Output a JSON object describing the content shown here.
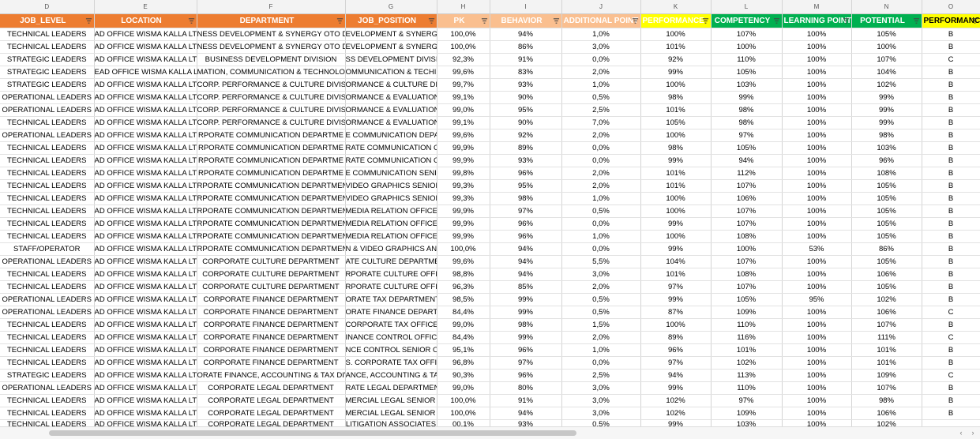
{
  "columns": [
    {
      "letter": "D",
      "header": "JOB_LEVEL",
      "color": "orange"
    },
    {
      "letter": "E",
      "header": "LOCATION",
      "color": "orange"
    },
    {
      "letter": "F",
      "header": "DEPARTMENT",
      "color": "orange"
    },
    {
      "letter": "G",
      "header": "JOB_POSITION",
      "color": "orange"
    },
    {
      "letter": "H",
      "header": "PK",
      "color": "peach"
    },
    {
      "letter": "I",
      "header": "BEHAVIOR",
      "color": "peach"
    },
    {
      "letter": "J",
      "header": "ADDITIONAL POINT",
      "color": "peach"
    },
    {
      "letter": "K",
      "header": "PERFORMANCE",
      "color": "yellow"
    },
    {
      "letter": "L",
      "header": "COMPETENCY",
      "color": "green"
    },
    {
      "letter": "M",
      "header": "LEARNING POINT",
      "color": "green"
    },
    {
      "letter": "N",
      "header": "POTENTIAL",
      "color": "green"
    },
    {
      "letter": "O",
      "header": "PERFORMANCE",
      "color": "yellow2"
    }
  ],
  "colors": {
    "orange": "#ED7D31",
    "peach": "#FABF8F",
    "yellow": "#FFFF00",
    "green": "#00B050"
  },
  "rows": [
    [
      "TECHNICAL LEADERS",
      "AD OFFICE WISMA KALLA LT.",
      "NESS DEVELOPMENT & SYNERGY OTO DIV",
      "EVELOPMENT & SYNERGY",
      "100,0%",
      "94%",
      "1,0%",
      "100%",
      "107%",
      "100%",
      "105%",
      "B"
    ],
    [
      "TECHNICAL LEADERS",
      "AD OFFICE WISMA KALLA LT.",
      "NESS DEVELOPMENT & SYNERGY OTO DIV",
      "EVELOPMENT & SYNERGY",
      "100,0%",
      "86%",
      "3,0%",
      "101%",
      "100%",
      "100%",
      "100%",
      "B"
    ],
    [
      "STRATEGIC LEADERS",
      "AD OFFICE WISMA KALLA LT.",
      "BUSINESS DEVELOPMENT DIVISION",
      "SS DEVELOPMENT DIVISIO",
      "92,3%",
      "91%",
      "0,0%",
      "92%",
      "110%",
      "100%",
      "107%",
      "C"
    ],
    [
      "STRATEGIC LEADERS",
      "EAD OFFICE WISMA KALLA LT.",
      "MATION, COMMUNICATION & TECHNOLO",
      "OMMUNICATION & TECHI",
      "99,6%",
      "83%",
      "2,0%",
      "99%",
      "105%",
      "100%",
      "104%",
      "B"
    ],
    [
      "STRATEGIC LEADERS",
      "AD OFFICE WISMA KALLA LT.",
      "CORP. PERFORMANCE & CULTURE DIVISIO",
      "ORMANCE & CULTURE DIV",
      "99,7%",
      "93%",
      "1,0%",
      "100%",
      "103%",
      "100%",
      "102%",
      "B"
    ],
    [
      "OPERATIONAL LEADERS",
      "AD OFFICE WISMA KALLA LT.",
      "CORP. PERFORMANCE & CULTURE DIVISIO",
      "ORMANCE & EVALUATION",
      "99,1%",
      "90%",
      "0,5%",
      "98%",
      "99%",
      "100%",
      "99%",
      "B"
    ],
    [
      "OPERATIONAL LEADERS",
      "AD OFFICE WISMA KALLA LT.",
      "CORP. PERFORMANCE & CULTURE DIVISIO",
      "ORMANCE & EVALUATION",
      "99,0%",
      "95%",
      "2,5%",
      "101%",
      "98%",
      "100%",
      "99%",
      "B"
    ],
    [
      "TECHNICAL LEADERS",
      "AD OFFICE WISMA KALLA LT.",
      "CORP. PERFORMANCE & CULTURE DIVISIO",
      "ORMANCE & EVALUATION",
      "99,1%",
      "90%",
      "7,0%",
      "105%",
      "98%",
      "100%",
      "99%",
      "B"
    ],
    [
      "OPERATIONAL LEADERS",
      "AD OFFICE WISMA KALLA LT.",
      "RPORATE COMMUNICATION DEPARTME",
      "E COMMUNICATION DEPA",
      "99,6%",
      "92%",
      "2,0%",
      "100%",
      "97%",
      "100%",
      "98%",
      "B"
    ],
    [
      "TECHNICAL LEADERS",
      "AD OFFICE WISMA KALLA LT.",
      "RPORATE COMMUNICATION DEPARTME",
      "RATE COMMUNICATION C",
      "99,9%",
      "89%",
      "0,0%",
      "98%",
      "105%",
      "100%",
      "103%",
      "B"
    ],
    [
      "TECHNICAL LEADERS",
      "AD OFFICE WISMA KALLA LT.",
      "RPORATE COMMUNICATION DEPARTME",
      "RATE COMMUNICATION C",
      "99,9%",
      "93%",
      "0,0%",
      "99%",
      "94%",
      "100%",
      "96%",
      "B"
    ],
    [
      "TECHNICAL LEADERS",
      "AD OFFICE WISMA KALLA LT.",
      "RPORATE COMMUNICATION DEPARTME",
      "E COMMUNICATION SENIC",
      "99,8%",
      "96%",
      "2,0%",
      "101%",
      "112%",
      "100%",
      "108%",
      "B"
    ],
    [
      "TECHNICAL LEADERS",
      "AD OFFICE WISMA KALLA LT.",
      "RPORATE COMMUNICATION DEPARTMEN",
      "VIDEO GRAPHICS SENIOR",
      "99,3%",
      "95%",
      "2,0%",
      "101%",
      "107%",
      "100%",
      "105%",
      "B"
    ],
    [
      "TECHNICAL LEADERS",
      "AD OFFICE WISMA KALLA LT.",
      "RPORATE COMMUNICATION DEPARTMEN",
      "VIDEO GRAPHICS SENIOR",
      "99,3%",
      "98%",
      "1,0%",
      "100%",
      "106%",
      "100%",
      "105%",
      "B"
    ],
    [
      "TECHNICAL LEADERS",
      "AD OFFICE WISMA KALLA LT.",
      "RPORATE COMMUNICATION DEPARTMEN",
      "MEDIA RELATION OFFICER",
      "99,9%",
      "97%",
      "0,5%",
      "100%",
      "107%",
      "100%",
      "105%",
      "B"
    ],
    [
      "TECHNICAL LEADERS",
      "AD OFFICE WISMA KALLA LT.",
      "RPORATE COMMUNICATION DEPARTMEN",
      "MEDIA RELATION OFFICER",
      "99,9%",
      "96%",
      "0,0%",
      "99%",
      "107%",
      "100%",
      "105%",
      "B"
    ],
    [
      "TECHNICAL LEADERS",
      "AD OFFICE WISMA KALLA LT.",
      "RPORATE COMMUNICATION DEPARTMEN",
      "MEDIA RELATION OFFICER",
      "99,9%",
      "96%",
      "1,0%",
      "100%",
      "108%",
      "100%",
      "105%",
      "B"
    ],
    [
      "STAFF/OPERATOR",
      "AD OFFICE WISMA KALLA LT.",
      "RPORATE COMMUNICATION DEPARTMEN",
      "N & VIDEO GRAPHICS AN",
      "100,0%",
      "94%",
      "0,0%",
      "99%",
      "100%",
      "53%",
      "86%",
      "B"
    ],
    [
      "OPERATIONAL LEADERS",
      "AD OFFICE WISMA KALLA LT.",
      "CORPORATE CULTURE DEPARTMENT",
      "ATE CULTURE DEPARTME",
      "99,6%",
      "94%",
      "5,5%",
      "104%",
      "107%",
      "100%",
      "105%",
      "B"
    ],
    [
      "TECHNICAL LEADERS",
      "AD OFFICE WISMA KALLA LT.",
      "CORPORATE CULTURE DEPARTMENT",
      "RPORATE CULTURE OFFIC",
      "98,8%",
      "94%",
      "3,0%",
      "101%",
      "108%",
      "100%",
      "106%",
      "B"
    ],
    [
      "TECHNICAL LEADERS",
      "AD OFFICE WISMA KALLA LT.",
      "CORPORATE CULTURE DEPARTMENT",
      "RPORATE CULTURE OFFIC",
      "96,3%",
      "85%",
      "2,0%",
      "97%",
      "107%",
      "100%",
      "105%",
      "B"
    ],
    [
      "OPERATIONAL LEADERS",
      "AD OFFICE WISMA KALLA LT.",
      "CORPORATE FINANCE DEPARTMENT",
      "ORATE TAX DEPARTMENT",
      "98,5%",
      "99%",
      "0,5%",
      "99%",
      "105%",
      "95%",
      "102%",
      "B"
    ],
    [
      "OPERATIONAL LEADERS",
      "AD OFFICE WISMA KALLA LT.",
      "CORPORATE FINANCE DEPARTMENT",
      "ORATE FINANCE DEPARTM",
      "84,4%",
      "99%",
      "0,5%",
      "87%",
      "109%",
      "100%",
      "106%",
      "C"
    ],
    [
      "TECHNICAL LEADERS",
      "AD OFFICE WISMA KALLA LT.",
      "CORPORATE FINANCE DEPARTMENT",
      "CORPORATE TAX OFFICER",
      "99,0%",
      "98%",
      "1,5%",
      "100%",
      "110%",
      "100%",
      "107%",
      "B"
    ],
    [
      "TECHNICAL LEADERS",
      "AD OFFICE WISMA KALLA LT.",
      "CORPORATE FINANCE DEPARTMENT",
      "INANCE CONTROL OFFICE",
      "84,4%",
      "99%",
      "2,0%",
      "89%",
      "116%",
      "100%",
      "111%",
      "C"
    ],
    [
      "TECHNICAL LEADERS",
      "AD OFFICE WISMA KALLA LT.",
      "CORPORATE FINANCE DEPARTMENT",
      "NCE CONTROL SENIOR OF",
      "95,1%",
      "96%",
      "1,0%",
      "96%",
      "101%",
      "100%",
      "101%",
      "B"
    ],
    [
      "TECHNICAL LEADERS",
      "AD OFFICE WISMA KALLA LT.",
      "CORPORATE FINANCE DEPARTMENT",
      "S. CORPORATE TAX OFFIC",
      "96,8%",
      "97%",
      "0,0%",
      "97%",
      "102%",
      "100%",
      "101%",
      "B"
    ],
    [
      "STRATEGIC LEADERS",
      "AD OFFICE WISMA KALLA LT.",
      "ORATE FINANCE, ACCOUNTING & TAX DIV",
      "ANCE, ACCOUNTING & TA",
      "90,3%",
      "96%",
      "2,5%",
      "94%",
      "113%",
      "100%",
      "109%",
      "C"
    ],
    [
      "OPERATIONAL LEADERS",
      "AD OFFICE WISMA KALLA LT.",
      "CORPORATE LEGAL DEPARTMENT",
      "RATE LEGAL DEPARTMEN",
      "99,0%",
      "80%",
      "3,0%",
      "99%",
      "110%",
      "100%",
      "107%",
      "B"
    ],
    [
      "TECHNICAL LEADERS",
      "AD OFFICE WISMA KALLA LT.",
      "CORPORATE LEGAL DEPARTMENT",
      "MERCIAL LEGAL SENIOR O",
      "100,0%",
      "91%",
      "3,0%",
      "102%",
      "97%",
      "100%",
      "98%",
      "B"
    ],
    [
      "TECHNICAL LEADERS",
      "AD OFFICE WISMA KALLA LT.",
      "CORPORATE LEGAL DEPARTMENT",
      "MERCIAL LEGAL SENIOR O",
      "100,0%",
      "94%",
      "3,0%",
      "102%",
      "109%",
      "100%",
      "106%",
      "B"
    ],
    [
      "TECHNICAL LEADERS",
      "AD OFFICE WISMA KALLA LT.",
      "CORPORATE LEGAL DEPARTMENT",
      "LITIGATION ASSOCIATES",
      "00,1%",
      "93%",
      "0,5%",
      "99%",
      "103%",
      "100%",
      "102%",
      ""
    ]
  ],
  "scrollbar": {
    "left_arrow": "‹",
    "right_arrow": "›"
  }
}
